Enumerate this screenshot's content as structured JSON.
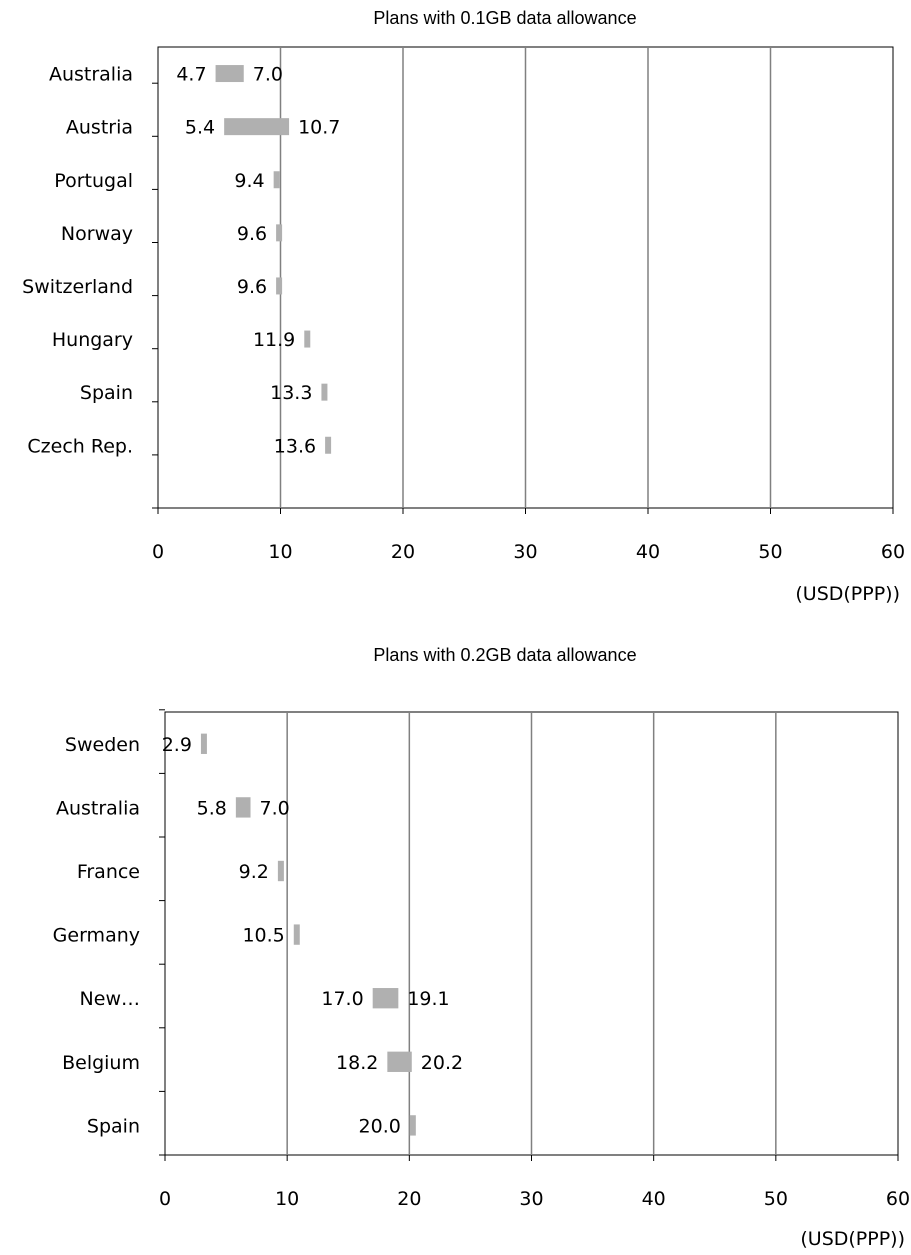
{
  "colors": {
    "bar": "#b0b0b0",
    "grid": "#808080",
    "axis": "#000000",
    "background": "#ffffff"
  },
  "chart_data": [
    {
      "type": "bar",
      "orientation": "horizontal",
      "style": "floating-range",
      "title": "Plans with 0.1GB data allowance",
      "unit_label": "(USD(PPP))",
      "xlim": [
        0,
        60
      ],
      "xticks": [
        0,
        10,
        20,
        30,
        40,
        50,
        60
      ],
      "grid": true,
      "categories": [
        "Australia",
        "Austria",
        "Portugal",
        "Norway",
        "Switzerland",
        "Hungary",
        "Spain",
        "Czech Rep."
      ],
      "low": [
        4.7,
        5.4,
        9.4,
        9.6,
        9.6,
        11.9,
        13.3,
        13.6
      ],
      "high": [
        7.0,
        10.7,
        null,
        null,
        null,
        null,
        null,
        null
      ],
      "low_labels": [
        "4.7",
        "5.4",
        "9.4",
        "9.6",
        "9.6",
        "11.9",
        "13.3",
        "13.6"
      ],
      "high_labels": [
        "7.0",
        "10.7",
        "",
        "",
        "",
        "",
        "",
        ""
      ]
    },
    {
      "type": "bar",
      "orientation": "horizontal",
      "style": "floating-range",
      "title": "Plans with 0.2GB data allowance",
      "unit_label": "(USD(PPP))",
      "xlim": [
        0,
        60
      ],
      "xticks": [
        0,
        10,
        20,
        30,
        40,
        50,
        60
      ],
      "grid": true,
      "categories": [
        "Sweden",
        "Australia",
        "France",
        "Germany",
        "New…",
        "Belgium",
        "Spain"
      ],
      "low": [
        2.9,
        5.8,
        9.2,
        10.5,
        17.0,
        18.2,
        20.0
      ],
      "high": [
        null,
        7.0,
        null,
        null,
        19.1,
        20.2,
        null
      ],
      "low_labels": [
        "2.9",
        "5.8",
        "9.2",
        "10.5",
        "17.0",
        "18.2",
        "20.0"
      ],
      "high_labels": [
        "",
        "7.0",
        "",
        "",
        "19.1",
        "20.2",
        ""
      ]
    }
  ]
}
